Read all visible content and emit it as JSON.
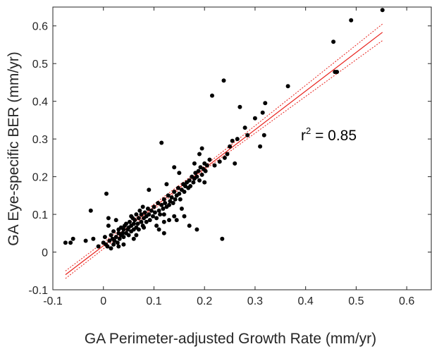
{
  "chart_data": {
    "type": "scatter",
    "title": "",
    "xlabel": "GA Perimeter-adjusted Growth Rate (mm/yr)",
    "ylabel": "GA Eye-specific BER (mm/yr)",
    "xlim": [
      -0.1,
      0.65
    ],
    "ylim": [
      -0.1,
      0.65
    ],
    "xticks": [
      -0.1,
      0,
      0.1,
      0.2,
      0.3,
      0.4,
      0.5,
      0.6
    ],
    "xtick_labels": [
      "-0.1",
      "0",
      "0.1",
      "0.2",
      "0.3",
      "0.4",
      "0.5",
      "0.6"
    ],
    "yticks": [
      -0.1,
      0,
      0.1,
      0.2,
      0.3,
      0.4,
      0.5,
      0.6
    ],
    "ytick_labels": [
      "-0.1",
      "0",
      "0.1",
      "0.2",
      "0.3",
      "0.4",
      "0.5",
      "0.6"
    ],
    "grid": false,
    "annotation": {
      "base": "r",
      "sup": "2",
      "rest": " = 0.85"
    },
    "fit_line": {
      "x": [
        -0.075,
        0.552
      ],
      "y": [
        -0.06,
        0.583
      ],
      "color": "#e8201a"
    },
    "confidence_upper": {
      "x": [
        -0.075,
        0.2,
        0.552
      ],
      "y": [
        -0.05,
        0.228,
        0.605
      ],
      "color": "#e8201a"
    },
    "confidence_lower": {
      "x": [
        -0.075,
        0.2,
        0.552
      ],
      "y": [
        -0.07,
        0.218,
        0.561
      ],
      "color": "#e8201a"
    },
    "point_color": "#000000",
    "points": [
      [
        -0.075,
        0.025
      ],
      [
        -0.065,
        0.025
      ],
      [
        -0.06,
        0.035
      ],
      [
        -0.035,
        0.03
      ],
      [
        -0.025,
        0.11
      ],
      [
        -0.02,
        0.035
      ],
      [
        -0.01,
        0.015
      ],
      [
        0.0,
        0.025
      ],
      [
        0.003,
        0.04
      ],
      [
        0.005,
        0.02
      ],
      [
        0.006,
        0.155
      ],
      [
        0.008,
        0.015
      ],
      [
        0.01,
        0.09
      ],
      [
        0.012,
        0.03
      ],
      [
        0.015,
        0.045
      ],
      [
        0.018,
        0.035
      ],
      [
        0.02,
        0.02
      ],
      [
        0.02,
        0.055
      ],
      [
        0.022,
        0.03
      ],
      [
        0.025,
        0.04
      ],
      [
        0.028,
        0.025
      ],
      [
        0.03,
        0.05
      ],
      [
        0.03,
        0.06
      ],
      [
        0.032,
        0.035
      ],
      [
        0.035,
        0.045
      ],
      [
        0.035,
        0.065
      ],
      [
        0.038,
        0.05
      ],
      [
        0.04,
        0.04
      ],
      [
        0.04,
        0.06
      ],
      [
        0.042,
        0.07
      ],
      [
        0.045,
        0.05
      ],
      [
        0.045,
        0.075
      ],
      [
        0.048,
        0.06
      ],
      [
        0.05,
        0.045
      ],
      [
        0.05,
        0.065
      ],
      [
        0.052,
        0.08
      ],
      [
        0.055,
        0.055
      ],
      [
        0.055,
        0.07
      ],
      [
        0.058,
        0.09
      ],
      [
        0.06,
        0.06
      ],
      [
        0.06,
        0.075
      ],
      [
        0.062,
        0.085
      ],
      [
        0.065,
        0.065
      ],
      [
        0.065,
        0.1
      ],
      [
        0.068,
        0.075
      ],
      [
        0.07,
        0.06
      ],
      [
        0.07,
        0.09
      ],
      [
        0.072,
        0.11
      ],
      [
        0.075,
        0.08
      ],
      [
        0.075,
        0.1
      ],
      [
        0.078,
        0.07
      ],
      [
        0.078,
        0.12
      ],
      [
        0.08,
        0.09
      ],
      [
        0.082,
        0.105
      ],
      [
        0.085,
        0.08
      ],
      [
        0.085,
        0.095
      ],
      [
        0.088,
        0.115
      ],
      [
        0.09,
        0.1
      ],
      [
        0.092,
        0.085
      ],
      [
        0.095,
        0.11
      ],
      [
        0.098,
        0.095
      ],
      [
        0.1,
        0.12
      ],
      [
        0.102,
        0.105
      ],
      [
        0.105,
        0.09
      ],
      [
        0.108,
        0.13
      ],
      [
        0.11,
        0.11
      ],
      [
        0.112,
        0.1
      ],
      [
        0.115,
        0.125
      ],
      [
        0.118,
        0.115
      ],
      [
        0.12,
        0.14
      ],
      [
        0.12,
        0.1
      ],
      [
        0.122,
        0.13
      ],
      [
        0.125,
        0.12
      ],
      [
        0.128,
        0.15
      ],
      [
        0.13,
        0.125
      ],
      [
        0.132,
        0.135
      ],
      [
        0.135,
        0.145
      ],
      [
        0.138,
        0.13
      ],
      [
        0.14,
        0.16
      ],
      [
        0.142,
        0.14
      ],
      [
        0.145,
        0.15
      ],
      [
        0.148,
        0.17
      ],
      [
        0.15,
        0.155
      ],
      [
        0.152,
        0.14
      ],
      [
        0.155,
        0.165
      ],
      [
        0.158,
        0.18
      ],
      [
        0.16,
        0.16
      ],
      [
        0.162,
        0.175
      ],
      [
        0.165,
        0.185
      ],
      [
        0.168,
        0.17
      ],
      [
        0.17,
        0.19
      ],
      [
        0.172,
        0.175
      ],
      [
        0.175,
        0.2
      ],
      [
        0.178,
        0.185
      ],
      [
        0.18,
        0.195
      ],
      [
        0.182,
        0.21
      ],
      [
        0.185,
        0.2
      ],
      [
        0.188,
        0.215
      ],
      [
        0.19,
        0.19
      ],
      [
        0.192,
        0.225
      ],
      [
        0.195,
        0.205
      ],
      [
        0.198,
        0.22
      ],
      [
        0.2,
        0.235
      ],
      [
        0.202,
        0.215
      ],
      [
        0.205,
        0.23
      ],
      [
        0.01,
        0.07
      ],
      [
        0.015,
        0.01
      ],
      [
        0.025,
        0.085
      ],
      [
        0.04,
        0.02
      ],
      [
        0.055,
        0.095
      ],
      [
        0.065,
        0.045
      ],
      [
        0.08,
        0.065
      ],
      [
        0.09,
        0.165
      ],
      [
        0.105,
        0.07
      ],
      [
        0.11,
        0.06
      ],
      [
        0.115,
        0.29
      ],
      [
        0.12,
        0.05
      ],
      [
        0.125,
        0.18
      ],
      [
        0.13,
        0.085
      ],
      [
        0.14,
        0.095
      ],
      [
        0.14,
        0.225
      ],
      [
        0.145,
        0.085
      ],
      [
        0.15,
        0.21
      ],
      [
        0.155,
        0.115
      ],
      [
        0.16,
        0.095
      ],
      [
        0.17,
        0.07
      ],
      [
        0.18,
        0.235
      ],
      [
        0.185,
        0.06
      ],
      [
        0.19,
        0.26
      ],
      [
        0.195,
        0.275
      ],
      [
        0.2,
        0.185
      ],
      [
        0.21,
        0.245
      ],
      [
        0.215,
        0.415
      ],
      [
        0.22,
        0.23
      ],
      [
        0.23,
        0.24
      ],
      [
        0.235,
        0.035
      ],
      [
        0.238,
        0.455
      ],
      [
        0.24,
        0.25
      ],
      [
        0.245,
        0.26
      ],
      [
        0.25,
        0.28
      ],
      [
        0.255,
        0.295
      ],
      [
        0.26,
        0.235
      ],
      [
        0.265,
        0.3
      ],
      [
        0.27,
        0.385
      ],
      [
        0.28,
        0.33
      ],
      [
        0.285,
        0.31
      ],
      [
        0.3,
        0.355
      ],
      [
        0.31,
        0.28
      ],
      [
        0.315,
        0.37
      ],
      [
        0.318,
        0.31
      ],
      [
        0.32,
        0.395
      ],
      [
        0.365,
        0.44
      ],
      [
        0.455,
        0.558
      ],
      [
        0.458,
        0.478
      ],
      [
        0.462,
        0.478
      ],
      [
        0.49,
        0.615
      ],
      [
        0.552,
        0.642
      ],
      [
        0.12,
        0.08
      ],
      [
        0.06,
        0.035
      ],
      [
        0.03,
        0.015
      ]
    ]
  }
}
